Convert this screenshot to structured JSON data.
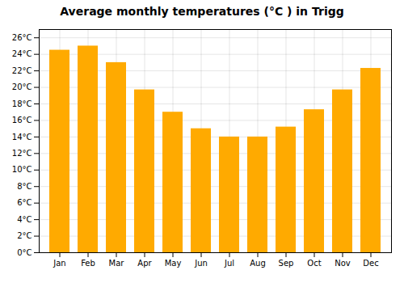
{
  "chart_data": {
    "type": "bar",
    "title": "Average monthly temperatures (°C ) in Trigg",
    "categories": [
      "Jan",
      "Feb",
      "Mar",
      "Apr",
      "May",
      "Jun",
      "Jul",
      "Aug",
      "Sep",
      "Oct",
      "Nov",
      "Dec"
    ],
    "values": [
      24.5,
      25.0,
      23.0,
      19.7,
      17.0,
      15.0,
      14.0,
      14.0,
      15.2,
      17.3,
      19.7,
      22.3
    ],
    "color": "#FFAA00",
    "ylim": [
      0,
      27
    ],
    "yticks": [
      {
        "value": 0,
        "label": "0°C"
      },
      {
        "value": 2,
        "label": "2°C"
      },
      {
        "value": 4,
        "label": "4°C"
      },
      {
        "value": 6,
        "label": "6°C"
      },
      {
        "value": 8,
        "label": "8°C"
      },
      {
        "value": 10,
        "label": "10°C"
      },
      {
        "value": 12,
        "label": "12°C"
      },
      {
        "value": 14,
        "label": "14°C"
      },
      {
        "value": 16,
        "label": "16°C"
      },
      {
        "value": 18,
        "label": "18°C"
      },
      {
        "value": 20,
        "label": "20°C"
      },
      {
        "value": 22,
        "label": "22°C"
      },
      {
        "value": 24,
        "label": "24°C"
      },
      {
        "value": 26,
        "label": "26°C"
      }
    ],
    "grid": true
  }
}
